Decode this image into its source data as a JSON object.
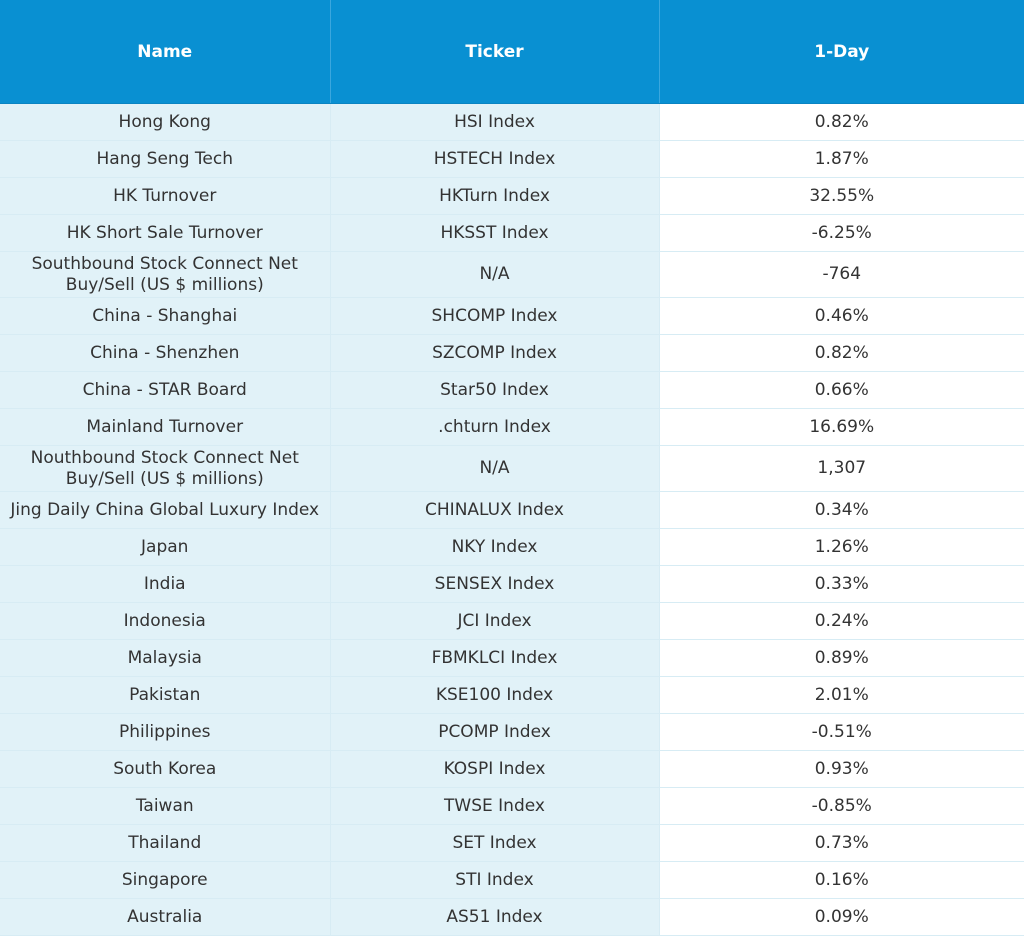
{
  "table": {
    "headers": {
      "name": "Name",
      "ticker": "Ticker",
      "day": "1-Day"
    },
    "rows": [
      {
        "name": "Hong Kong",
        "ticker": "HSI Index",
        "day": "0.82%"
      },
      {
        "name": "Hang Seng Tech",
        "ticker": "HSTECH Index",
        "day": "1.87%"
      },
      {
        "name": "HK Turnover",
        "ticker": "HKTurn Index",
        "day": "32.55%"
      },
      {
        "name": "HK Short Sale Turnover",
        "ticker": "HKSST Index",
        "day": "-6.25%"
      },
      {
        "name_line1": "Southbound Stock Connect Net",
        "name_line2": "Buy/Sell (US $ millions)",
        "ticker": "N/A",
        "day": "-764"
      },
      {
        "name": "China - Shanghai",
        "ticker": "SHCOMP Index",
        "day": "0.46%"
      },
      {
        "name": "China - Shenzhen",
        "ticker": "SZCOMP Index",
        "day": "0.82%"
      },
      {
        "name": "China - STAR Board",
        "ticker": "Star50 Index",
        "day": "0.66%"
      },
      {
        "name": "Mainland Turnover",
        "ticker": ".chturn Index",
        "day": "16.69%"
      },
      {
        "name_line1": "Nouthbound Stock Connect Net",
        "name_line2": "Buy/Sell (US $ millions)",
        "ticker": "N/A",
        "day": "1,307"
      },
      {
        "name": "Jing Daily China Global Luxury Index",
        "ticker": "CHINALUX Index",
        "day": "0.34%"
      },
      {
        "name": "Japan",
        "ticker": "NKY Index",
        "day": "1.26%"
      },
      {
        "name": "India",
        "ticker": "SENSEX Index",
        "day": "0.33%"
      },
      {
        "name": "Indonesia",
        "ticker": "JCI Index",
        "day": "0.24%"
      },
      {
        "name": "Malaysia",
        "ticker": "FBMKLCI Index",
        "day": "0.89%"
      },
      {
        "name": "Pakistan",
        "ticker": "KSE100 Index",
        "day": "2.01%"
      },
      {
        "name": "Philippines",
        "ticker": "PCOMP Index",
        "day": "-0.51%"
      },
      {
        "name": "South Korea",
        "ticker": "KOSPI Index",
        "day": "0.93%"
      },
      {
        "name": "Taiwan",
        "ticker": "TWSE Index",
        "day": "-0.85%"
      },
      {
        "name": "Thailand",
        "ticker": "SET Index",
        "day": "0.73%"
      },
      {
        "name": "Singapore",
        "ticker": "STI Index",
        "day": "0.16%"
      },
      {
        "name": "Australia",
        "ticker": "AS51 Index",
        "day": "0.09%"
      }
    ]
  },
  "colors": {
    "header_bg": "#0990d2",
    "header_text": "#ffffff",
    "shaded_cell_bg": "#e1f2f8",
    "text": "#333333"
  }
}
